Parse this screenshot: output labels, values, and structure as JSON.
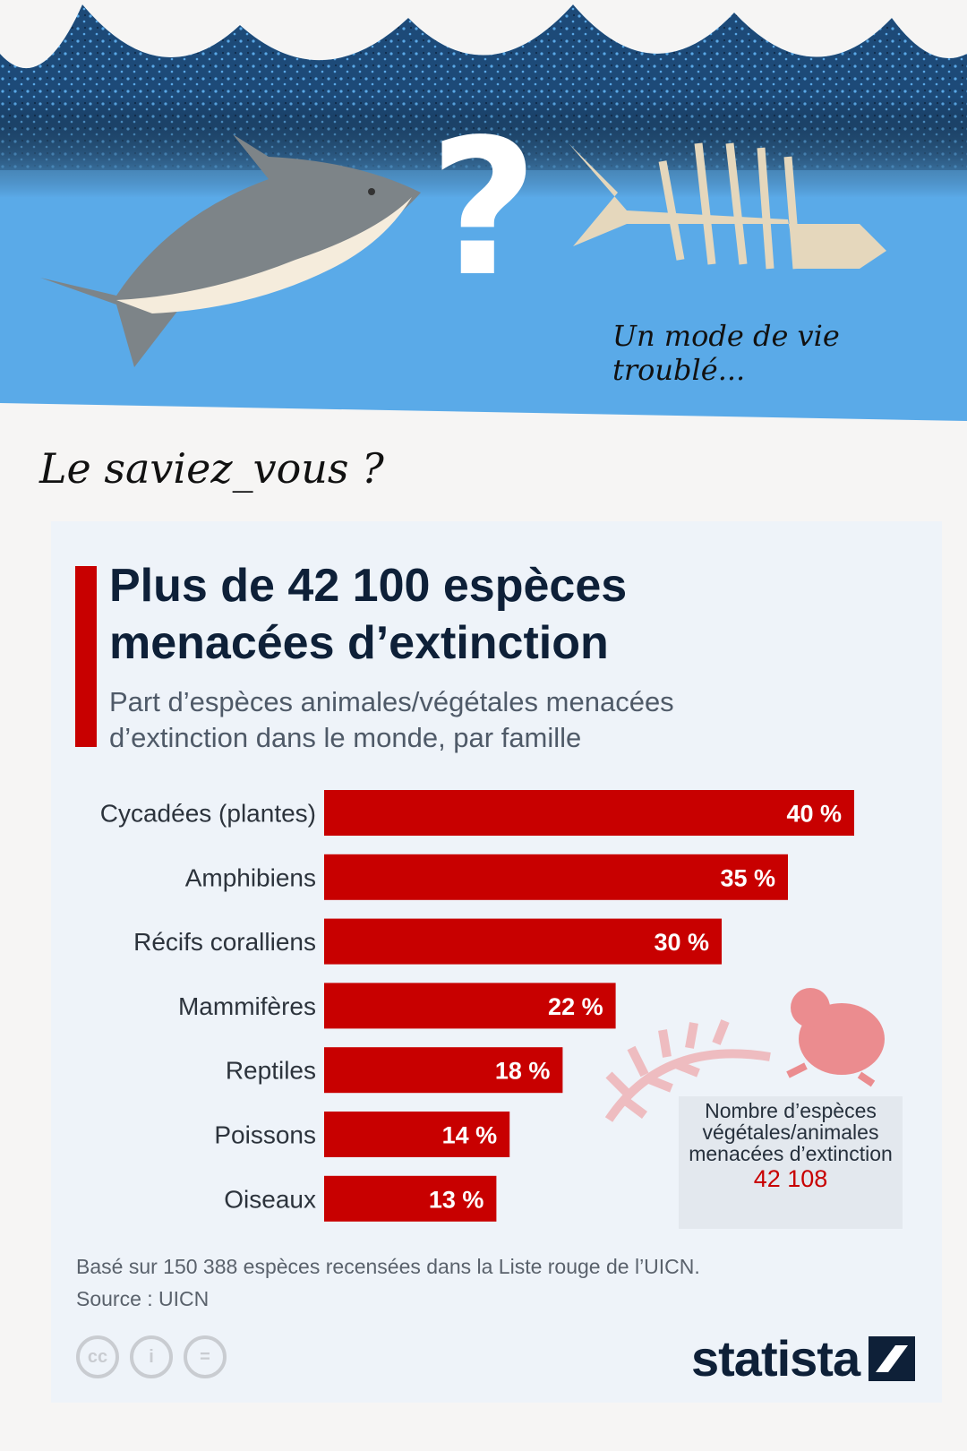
{
  "header": {
    "tagline": "Un mode de vie troublé...",
    "question_mark": "?"
  },
  "intro": "Le saviez_vous ?",
  "chart_data": {
    "type": "bar",
    "orientation": "horizontal",
    "title": "Plus de 42 100 espèces menacées d’extinction",
    "subtitle": "Part d’espèces animales/végétales menacées d’extinction dans le monde, par famille",
    "categories": [
      "Cycadées (plantes)",
      "Amphibiens",
      "Récifs coralliens",
      "Mammifères",
      "Reptiles",
      "Poissons",
      "Oiseaux"
    ],
    "values": [
      40,
      35,
      30,
      22,
      18,
      14,
      13
    ],
    "value_labels": [
      "40 %",
      "35 %",
      "30 %",
      "22 %",
      "18 %",
      "14 %",
      "13 %"
    ],
    "unit": "%",
    "bar_color": "#c80000",
    "grid": false
  },
  "callout": {
    "label": "Nombre d’espèces végétales/animales menacées d’extinction",
    "value": "42 108"
  },
  "footer": {
    "note": "Basé sur 150 388 espèces recensées dans la Liste rouge de l’UICN.",
    "source": "Source : UICN",
    "brand": "statista",
    "license_icons": [
      "cc-icon",
      "by-icon",
      "nd-icon"
    ],
    "license_labels": [
      "cc",
      "i",
      "="
    ]
  }
}
